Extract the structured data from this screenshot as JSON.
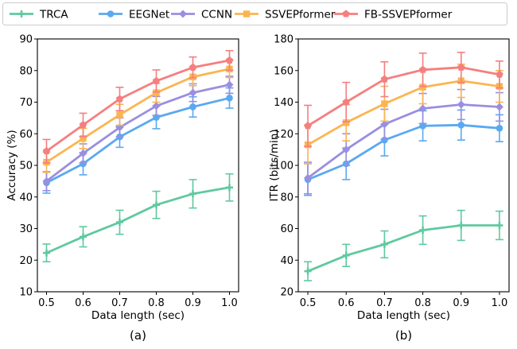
{
  "figure": {
    "series": [
      {
        "name": "TRCA",
        "color": "#5fc9a0",
        "marker": "plus"
      },
      {
        "name": "EEGNet",
        "color": "#5aa9f0",
        "marker": "circle"
      },
      {
        "name": "CCNN",
        "color": "#9b8ee0",
        "marker": "diamond"
      },
      {
        "name": "SSVEPformer",
        "color": "#fbb550",
        "marker": "square"
      },
      {
        "name": "FB-SSVEPformer",
        "color": "#f57f7f",
        "marker": "pentagon"
      }
    ]
  },
  "chart_data": [
    {
      "type": "line",
      "panel_label": "(a)",
      "xlabel": "Data length (sec)",
      "ylabel": "Accuracy (%)",
      "x": [
        0.5,
        0.6,
        0.7,
        0.8,
        0.9,
        1.0
      ],
      "x_ticks": [
        "0.5",
        "0.6",
        "0.7",
        "0.8",
        "0.9",
        "1.0"
      ],
      "ylim": [
        10,
        90
      ],
      "y_ticks": [
        "10",
        "20",
        "30",
        "40",
        "50",
        "60",
        "70",
        "80",
        "90"
      ],
      "series": [
        {
          "name": "TRCA",
          "values": [
            22.3,
            27.4,
            32.0,
            37.5,
            41.0,
            43.0
          ],
          "errors": [
            2.8,
            3.2,
            3.8,
            4.3,
            4.5,
            4.3
          ]
        },
        {
          "name": "EEGNet",
          "values": [
            44.5,
            50.5,
            59.0,
            65.2,
            68.5,
            71.3
          ],
          "errors": [
            3.3,
            3.5,
            3.3,
            3.6,
            3.2,
            3.2
          ]
        },
        {
          "name": "CCNN",
          "values": [
            45.0,
            53.8,
            62.0,
            68.8,
            73.0,
            75.5
          ],
          "errors": [
            3.0,
            3.0,
            3.0,
            3.0,
            2.8,
            2.7
          ]
        },
        {
          "name": "SSVEPformer",
          "values": [
            51.0,
            58.5,
            66.0,
            73.0,
            78.0,
            80.5
          ],
          "errors": [
            3.2,
            3.2,
            3.3,
            3.0,
            2.8,
            2.7
          ]
        },
        {
          "name": "FB-SSVEPformer",
          "values": [
            54.5,
            62.8,
            71.0,
            76.7,
            81.0,
            83.2
          ],
          "errors": [
            3.7,
            3.7,
            3.7,
            3.5,
            3.3,
            3.1
          ]
        }
      ]
    },
    {
      "type": "line",
      "panel_label": "(b)",
      "xlabel": "Data length (sec)",
      "ylabel": "ITR (bits/min)",
      "x": [
        0.5,
        0.6,
        0.7,
        0.8,
        0.9,
        1.0
      ],
      "x_ticks": [
        "0.5",
        "0.6",
        "0.7",
        "0.8",
        "0.9",
        "1.0"
      ],
      "ylim": [
        20,
        180
      ],
      "y_ticks": [
        "20",
        "40",
        "60",
        "80",
        "100",
        "120",
        "140",
        "160",
        "180"
      ],
      "series": [
        {
          "name": "TRCA",
          "values": [
            33.0,
            43.0,
            50.0,
            59.0,
            62.0,
            62.0
          ],
          "errors": [
            6.0,
            7.0,
            8.5,
            9.0,
            9.5,
            9.0
          ]
        },
        {
          "name": "EEGNet",
          "values": [
            91.0,
            101.0,
            116.0,
            125.0,
            125.5,
            123.5
          ],
          "errors": [
            10.0,
            10.0,
            10.0,
            9.5,
            9.5,
            8.5
          ]
        },
        {
          "name": "CCNN",
          "values": [
            92.0,
            110.0,
            126.0,
            136.0,
            138.5,
            137.0
          ],
          "errors": [
            10.0,
            10.0,
            9.5,
            9.5,
            9.5,
            9.0
          ]
        },
        {
          "name": "SSVEPformer",
          "values": [
            113.0,
            127.0,
            139.0,
            149.5,
            153.5,
            150.0
          ],
          "errors": [
            12.0,
            11.5,
            11.0,
            10.5,
            10.5,
            10.0
          ]
        },
        {
          "name": "FB-SSVEPformer",
          "values": [
            125.0,
            140.0,
            154.5,
            160.5,
            162.0,
            157.5
          ],
          "errors": [
            13.0,
            12.5,
            11.0,
            10.5,
            9.5,
            8.5
          ]
        }
      ]
    }
  ]
}
